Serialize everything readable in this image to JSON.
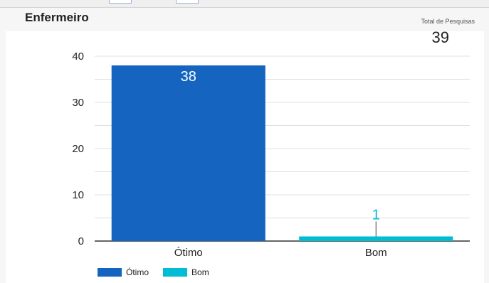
{
  "panel": {
    "title": "Enfermeiro",
    "kpi_label": "Total de Pesquisas",
    "kpi_value": "39"
  },
  "colors": {
    "otimo": "#1565c0",
    "bom": "#00bcd4",
    "grid": "#e0e0e0",
    "baseline": "#333333"
  },
  "chart_data": {
    "type": "bar",
    "categories": [
      "Ótimo",
      "Bom"
    ],
    "values": [
      38,
      1
    ],
    "data_labels": [
      "38",
      "1"
    ],
    "ylim": [
      0,
      40
    ],
    "yticks": [
      0,
      10,
      20,
      30,
      40
    ],
    "grid": true,
    "legend": [
      {
        "name": "Ótimo",
        "color": "#1565c0"
      },
      {
        "name": "Bom",
        "color": "#00bcd4"
      }
    ],
    "legend_position": "bottom-left"
  }
}
